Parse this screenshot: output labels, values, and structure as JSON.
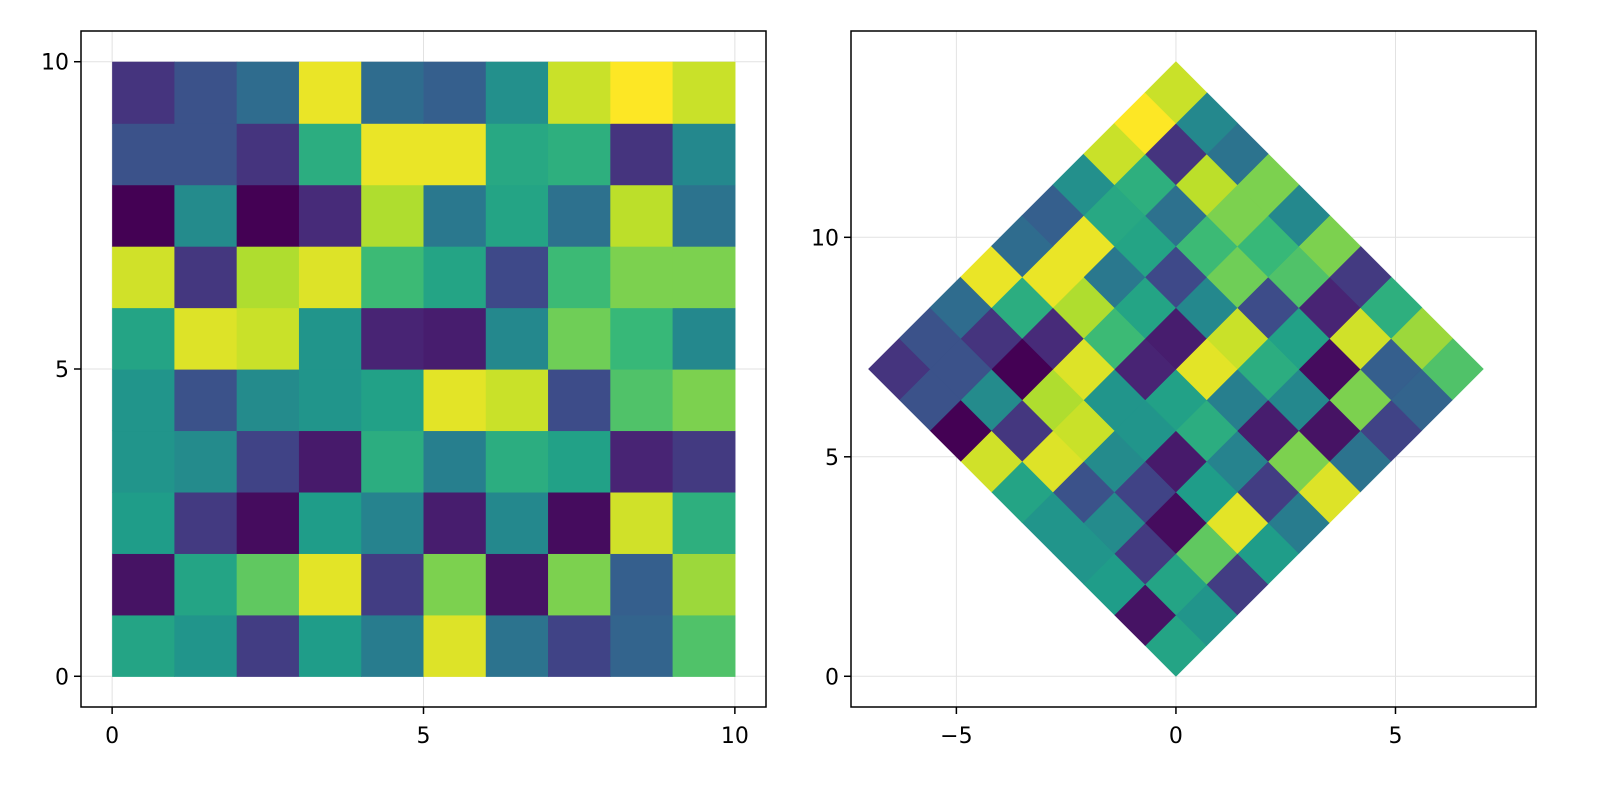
{
  "chart_data": [
    {
      "type": "heatmap",
      "title": "",
      "xlabel": "",
      "ylabel": "",
      "xlim": [
        -0.5,
        10.5
      ],
      "ylim": [
        -0.5,
        10.5
      ],
      "x_ticks": [
        "0",
        "5",
        "10"
      ],
      "y_ticks": [
        "0",
        "5",
        "10"
      ],
      "grid": true,
      "colormap": "viridis",
      "rows_bottom_to_top": [
        [
          0.58,
          0.52,
          0.18,
          0.55,
          0.42,
          0.95,
          0.38,
          0.2,
          0.32,
          0.72
        ],
        [
          0.05,
          0.58,
          0.75,
          0.96,
          0.18,
          0.8,
          0.05,
          0.8,
          0.3,
          0.85
        ],
        [
          0.55,
          0.17,
          0.03,
          0.55,
          0.45,
          0.08,
          0.47,
          0.03,
          0.93,
          0.63
        ],
        [
          0.52,
          0.48,
          0.2,
          0.07,
          0.62,
          0.43,
          0.62,
          0.57,
          0.1,
          0.17
        ],
        [
          0.52,
          0.25,
          0.48,
          0.52,
          0.57,
          0.96,
          0.92,
          0.23,
          0.72,
          0.8
        ],
        [
          0.58,
          0.95,
          0.92,
          0.52,
          0.1,
          0.08,
          0.47,
          0.78,
          0.67,
          0.47
        ],
        [
          0.93,
          0.16,
          0.88,
          0.95,
          0.68,
          0.58,
          0.22,
          0.68,
          0.8,
          0.8
        ],
        [
          0.0,
          0.48,
          0.0,
          0.12,
          0.88,
          0.4,
          0.58,
          0.37,
          0.9,
          0.38
        ],
        [
          0.25,
          0.25,
          0.15,
          0.62,
          0.97,
          0.97,
          0.6,
          0.63,
          0.15,
          0.47
        ],
        [
          0.15,
          0.25,
          0.35,
          0.97,
          0.35,
          0.3,
          0.5,
          0.92,
          1.0,
          0.92
        ]
      ]
    },
    {
      "type": "heatmap",
      "title": "",
      "xlabel": "",
      "ylabel": "",
      "transform": "rotated 45° about origin, scaled by 1/√2 (cells form a diamond)",
      "xlim": [
        -7.4,
        8.2
      ],
      "ylim": [
        -0.7,
        14.7
      ],
      "x_ticks": [
        "−5",
        "0",
        "5"
      ],
      "y_ticks": [
        "0",
        "5",
        "10"
      ],
      "grid": true,
      "colormap": "viridis",
      "rows_bottom_to_top": [
        [
          0.58,
          0.52,
          0.18,
          0.55,
          0.42,
          0.95,
          0.38,
          0.2,
          0.32,
          0.72
        ],
        [
          0.05,
          0.58,
          0.75,
          0.96,
          0.18,
          0.8,
          0.05,
          0.8,
          0.3,
          0.85
        ],
        [
          0.55,
          0.17,
          0.03,
          0.55,
          0.45,
          0.08,
          0.47,
          0.03,
          0.93,
          0.63
        ],
        [
          0.52,
          0.48,
          0.2,
          0.07,
          0.62,
          0.43,
          0.62,
          0.57,
          0.1,
          0.17
        ],
        [
          0.52,
          0.25,
          0.48,
          0.52,
          0.57,
          0.96,
          0.92,
          0.23,
          0.72,
          0.8
        ],
        [
          0.58,
          0.95,
          0.92,
          0.52,
          0.1,
          0.08,
          0.47,
          0.78,
          0.67,
          0.47
        ],
        [
          0.93,
          0.16,
          0.88,
          0.95,
          0.68,
          0.58,
          0.22,
          0.68,
          0.8,
          0.8
        ],
        [
          0.0,
          0.48,
          0.0,
          0.12,
          0.88,
          0.4,
          0.58,
          0.37,
          0.9,
          0.38
        ],
        [
          0.25,
          0.25,
          0.15,
          0.62,
          0.97,
          0.97,
          0.6,
          0.63,
          0.15,
          0.47
        ],
        [
          0.15,
          0.25,
          0.35,
          0.97,
          0.35,
          0.3,
          0.5,
          0.92,
          1.0,
          0.92
        ]
      ]
    }
  ]
}
